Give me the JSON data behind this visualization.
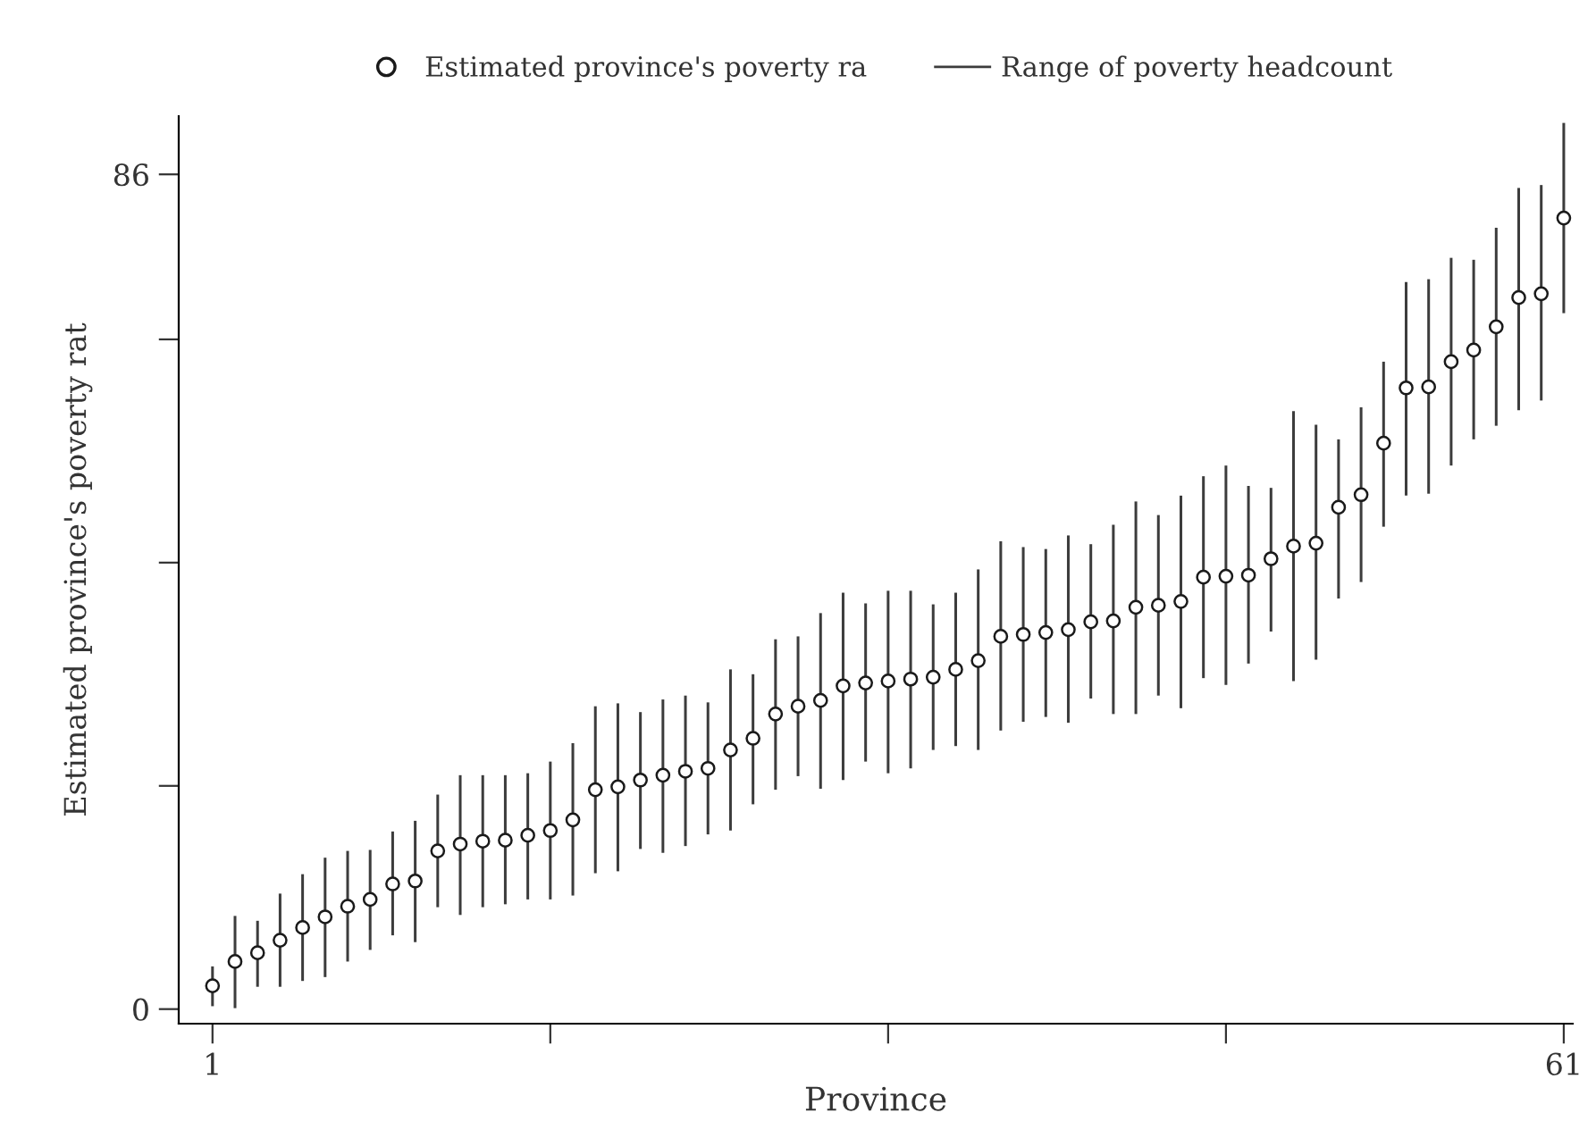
{
  "chart_data": {
    "type": "scatter",
    "xlabel": "Province",
    "ylabel": "Estimated province's poverty rat",
    "x": [
      1,
      2,
      3,
      4,
      5,
      6,
      7,
      8,
      9,
      10,
      11,
      12,
      13,
      14,
      15,
      16,
      17,
      18,
      19,
      20,
      21,
      22,
      23,
      24,
      25,
      26,
      27,
      28,
      29,
      30,
      31,
      32,
      33,
      34,
      35,
      36,
      37,
      38,
      39,
      40,
      41,
      42,
      43,
      44,
      45,
      46,
      47,
      48,
      49,
      50,
      51,
      52,
      53,
      54,
      55,
      56,
      57,
      58,
      59,
      60,
      61
    ],
    "xlim": [
      -0.5,
      61.4
    ],
    "xticks": [
      1,
      {
        "value": 16,
        "label": null
      },
      {
        "value": 31,
        "label": null
      },
      {
        "value": 46,
        "label": null
      },
      61
    ],
    "ylim": [
      -1.5,
      92
    ],
    "yticks": [
      0,
      {
        "value": 23,
        "label": null
      },
      {
        "value": 46,
        "label": null
      },
      {
        "value": 69,
        "label": null
      },
      86
    ],
    "grid": false,
    "legend": "top",
    "series": [
      {
        "name": "Range of poverty headcount",
        "type": "bar",
        "color": "#3c3c3c",
        "base": [
          0.3,
          0.1,
          2.3,
          2.3,
          2.9,
          3.3,
          4.9,
          6.1,
          7.6,
          6.9,
          10.5,
          9.7,
          10.5,
          10.8,
          11.3,
          11.3,
          11.7,
          14.0,
          14.2,
          16.5,
          16.1,
          16.8,
          18.0,
          18.4,
          21.1,
          22.6,
          24.0,
          22.7,
          23.6,
          25.5,
          24.3,
          24.8,
          26.7,
          27.1,
          26.7,
          28.7,
          29.6,
          30.1,
          29.5,
          32.0,
          30.4,
          30.4,
          32.3,
          31.0,
          34.1,
          33.4,
          35.6,
          38.9,
          33.8,
          36.0,
          42.3,
          44.0,
          49.7,
          52.9,
          53.1,
          56.0,
          58.7,
          60.1,
          61.7,
          62.7,
          71.7
        ],
        "values": [
          4.1,
          9.5,
          6.8,
          9.6,
          11.0,
          12.3,
          11.4,
          10.3,
          10.7,
          12.5,
          11.6,
          14.4,
          13.6,
          13.3,
          13.0,
          14.2,
          15.7,
          17.2,
          17.3,
          14.1,
          15.8,
          15.5,
          13.6,
          16.6,
          13.4,
          15.5,
          14.4,
          18.1,
          19.3,
          16.3,
          18.8,
          18.3,
          15.0,
          15.8,
          18.6,
          19.5,
          18.0,
          17.3,
          19.3,
          15.9,
          19.5,
          21.9,
          18.6,
          21.9,
          20.8,
          22.6,
          18.3,
          14.8,
          27.8,
          24.2,
          16.4,
          18.0,
          17.0,
          22.0,
          22.1,
          21.4,
          18.5,
          20.4,
          22.9,
          22.2,
          19.6
        ]
      },
      {
        "name": "Estimated province's poverty ra",
        "color": "#1a1a1a",
        "marker": "circle",
        "values": [
          2.4,
          4.9,
          5.8,
          7.1,
          8.4,
          9.5,
          10.6,
          11.3,
          12.9,
          13.2,
          16.3,
          17.0,
          17.3,
          17.4,
          17.9,
          18.4,
          19.5,
          22.6,
          22.9,
          23.6,
          24.1,
          24.5,
          24.8,
          26.7,
          27.9,
          30.4,
          31.2,
          31.8,
          33.3,
          33.6,
          33.8,
          34.0,
          34.2,
          35.0,
          35.9,
          38.4,
          38.6,
          38.8,
          39.1,
          39.9,
          40.0,
          41.4,
          41.6,
          42.0,
          44.5,
          44.6,
          44.7,
          46.4,
          47.7,
          48.0,
          51.7,
          53.0,
          58.3,
          64.0,
          64.1,
          66.7,
          67.9,
          70.3,
          73.3,
          73.7,
          81.5
        ]
      }
    ]
  }
}
